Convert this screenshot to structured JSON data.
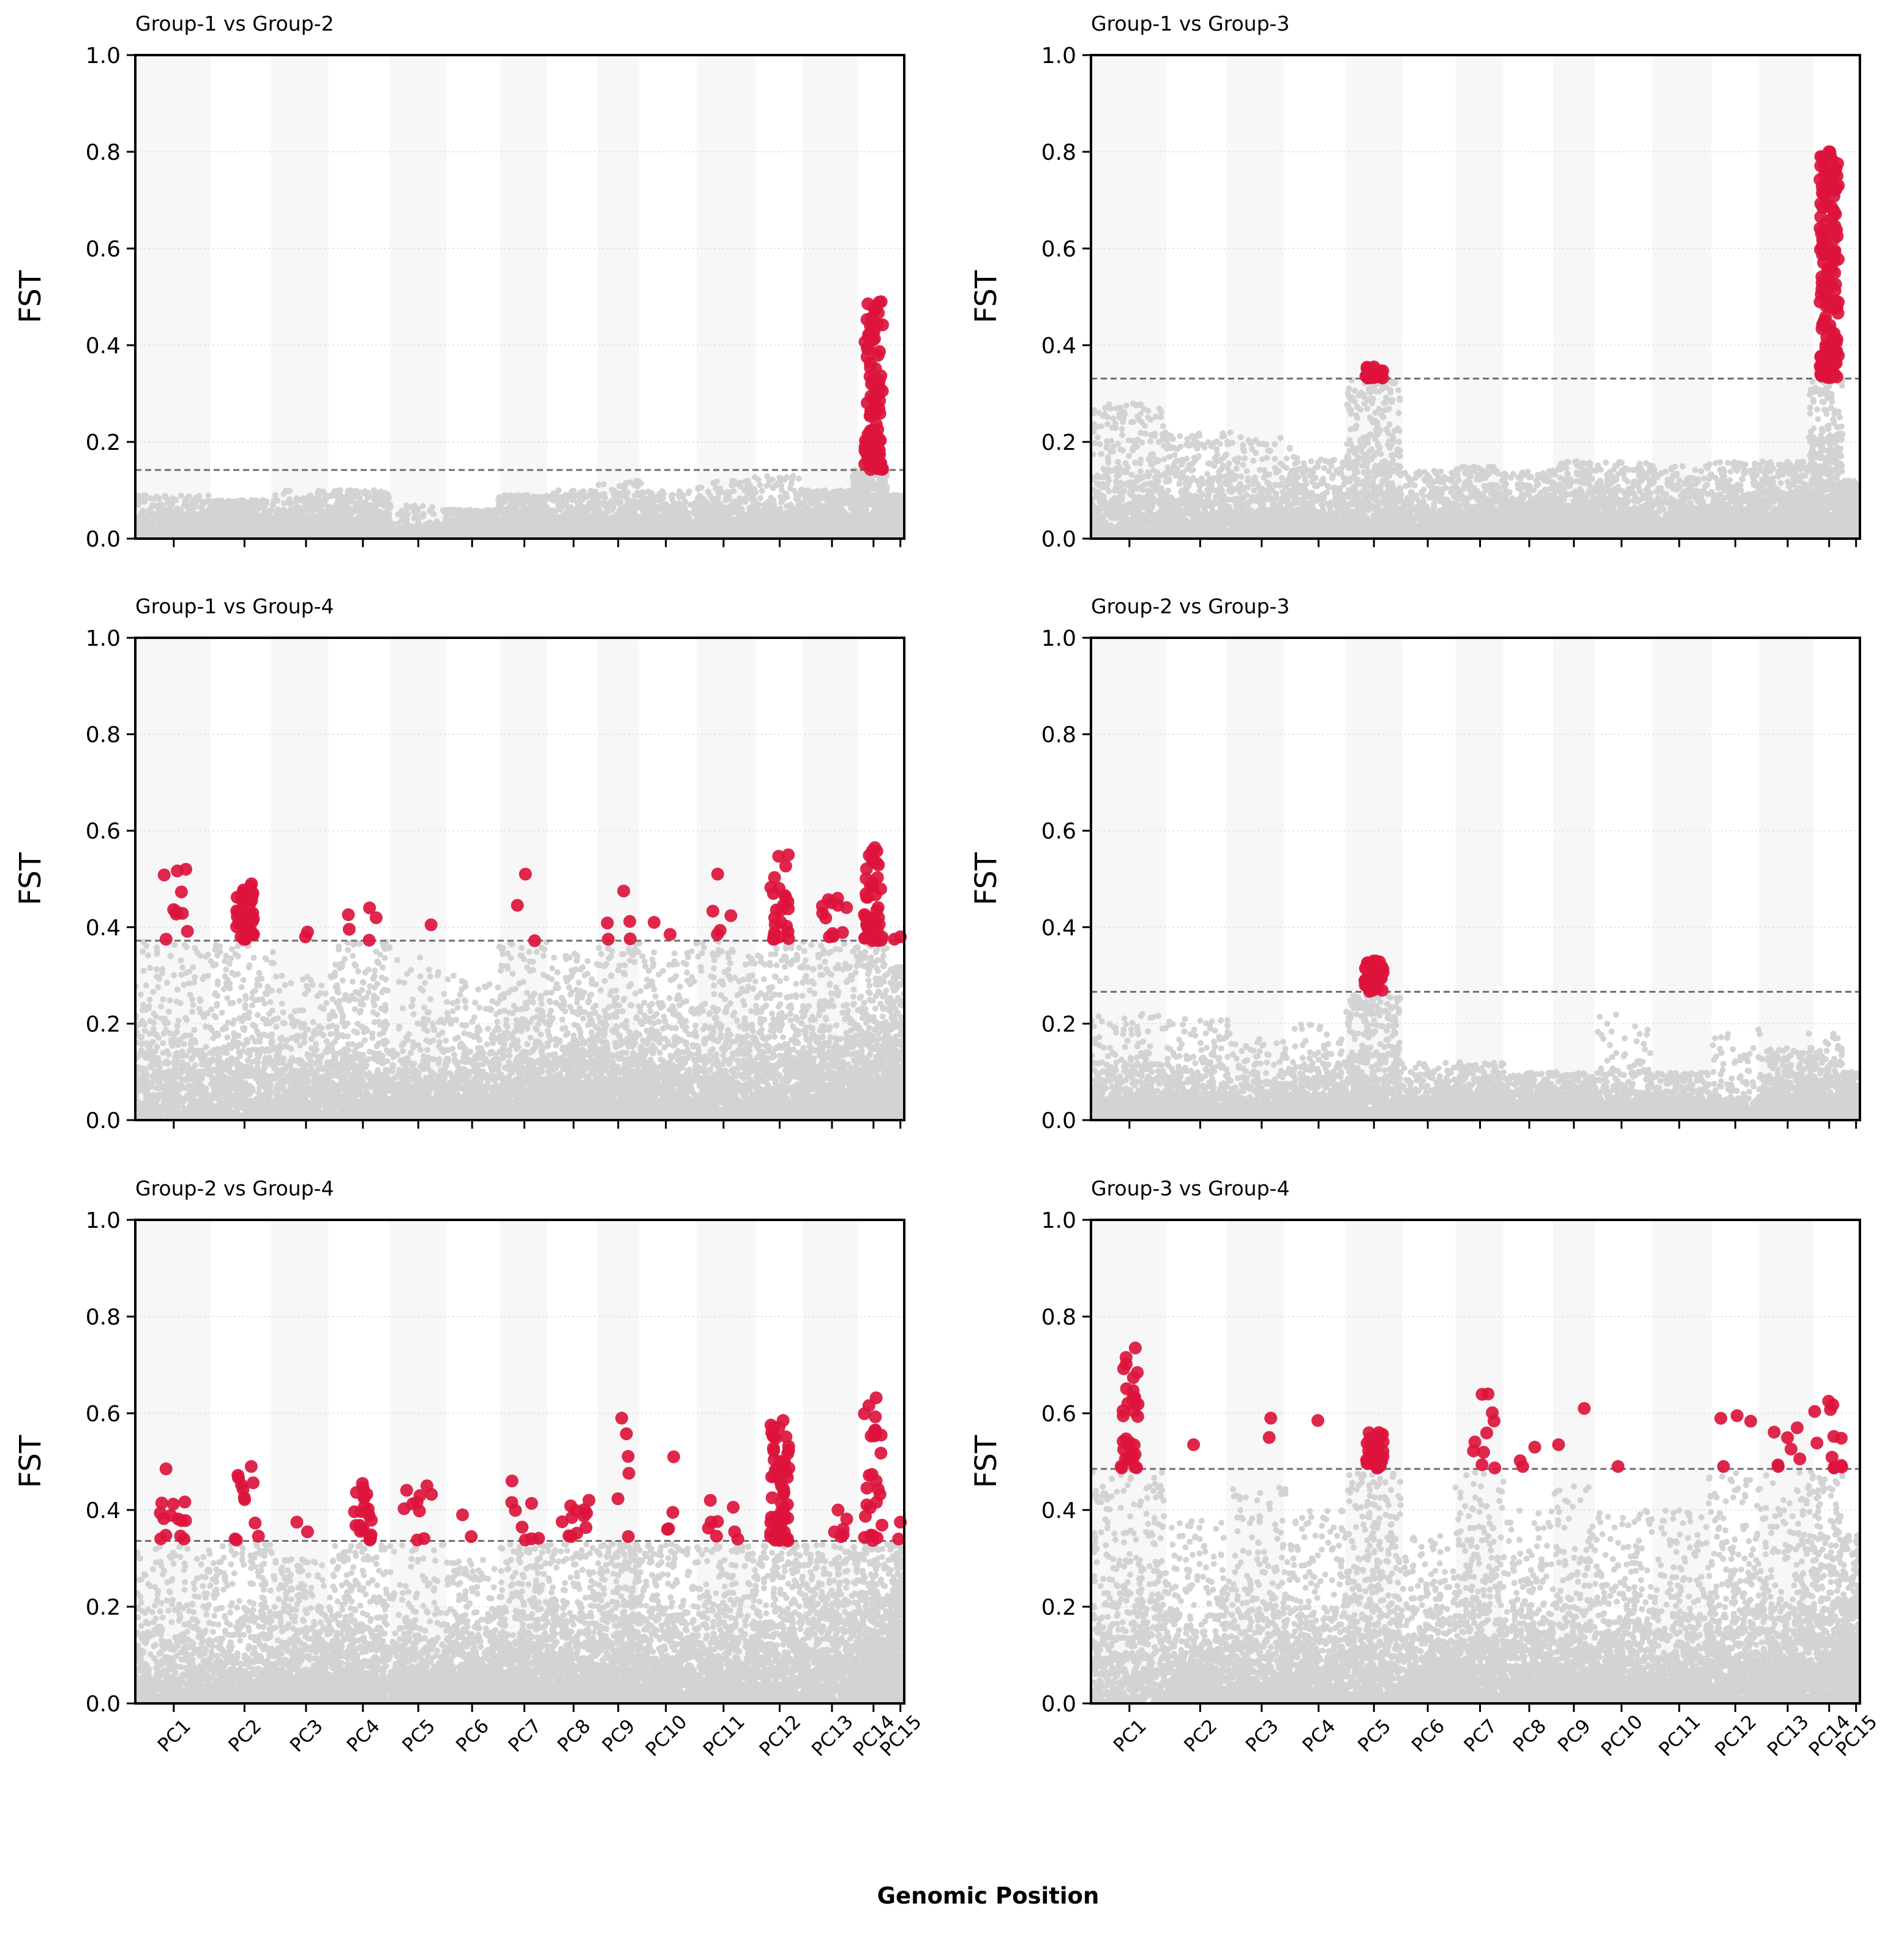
{
  "figure": {
    "xlabel": "Genomic Position",
    "colors": {
      "background_point": "#d3d3d3",
      "significant_point": "#dc143c",
      "threshold_line": "#6e6e6e",
      "band_shade": "#f7f7f7",
      "grid": "#dcdcdc"
    }
  },
  "chart_data": [
    {
      "type": "scatter",
      "title": "Group-1 vs Group-2",
      "xlabel": "",
      "ylabel": "FST",
      "ylim": [
        0,
        1
      ],
      "yticks": [
        "0.0",
        "0.2",
        "0.4",
        "0.6",
        "0.8",
        "1.0"
      ],
      "threshold": 0.142,
      "xtick_labels_shown": false,
      "background_levels": [
        0.03,
        0.04,
        0.03,
        0.04,
        0.01,
        0.03,
        0.04,
        0.03,
        0.03,
        0.03,
        0.03,
        0.03,
        0.04,
        0.06,
        0.03
      ],
      "background_peaks": [
        0.09,
        0.08,
        0.1,
        0.1,
        0.07,
        0.06,
        0.09,
        0.1,
        0.12,
        0.1,
        0.12,
        0.13,
        0.1,
        0.21,
        0.09
      ],
      "significant_points": [
        {
          "chr": "PC14",
          "min": 0.143,
          "max": 0.49,
          "count": 90
        }
      ]
    },
    {
      "type": "scatter",
      "title": "Group-1 vs Group-3",
      "xlabel": "",
      "ylabel": "FST",
      "ylim": [
        0,
        1
      ],
      "yticks": [
        "0.0",
        "0.2",
        "0.4",
        "0.6",
        "0.8",
        "1.0"
      ],
      "threshold": 0.331,
      "xtick_labels_shown": false,
      "background_levels": [
        0.09,
        0.07,
        0.05,
        0.05,
        0.12,
        0.04,
        0.05,
        0.05,
        0.05,
        0.05,
        0.04,
        0.05,
        0.06,
        0.12,
        0.04
      ],
      "background_peaks": [
        0.28,
        0.22,
        0.21,
        0.17,
        0.33,
        0.14,
        0.15,
        0.14,
        0.16,
        0.16,
        0.15,
        0.16,
        0.16,
        0.33,
        0.12
      ],
      "significant_points": [
        {
          "chr": "PC5",
          "min": 0.332,
          "max": 0.355,
          "count": 25
        },
        {
          "chr": "PC14",
          "min": 0.333,
          "max": 0.8,
          "count": 150
        }
      ]
    },
    {
      "type": "scatter",
      "title": "Group-1 vs Group-4",
      "xlabel": "",
      "ylabel": "FST",
      "ylim": [
        0,
        1
      ],
      "yticks": [
        "0.0",
        "0.2",
        "0.4",
        "0.6",
        "0.8",
        "1.0"
      ],
      "threshold": 0.372,
      "xtick_labels_shown": false,
      "background_levels": [
        0.1,
        0.12,
        0.08,
        0.1,
        0.06,
        0.07,
        0.1,
        0.1,
        0.1,
        0.1,
        0.1,
        0.12,
        0.11,
        0.12,
        0.1
      ],
      "background_peaks": [
        0.37,
        0.37,
        0.3,
        0.37,
        0.34,
        0.3,
        0.37,
        0.35,
        0.37,
        0.35,
        0.37,
        0.37,
        0.37,
        0.37,
        0.32
      ],
      "significant_points": [
        {
          "chr": "PC1",
          "min": 0.375,
          "max": 0.52,
          "count": 10
        },
        {
          "chr": "PC2",
          "min": 0.375,
          "max": 0.49,
          "count": 40
        },
        {
          "chr": "PC3",
          "min": 0.38,
          "max": 0.39,
          "count": 2
        },
        {
          "chr": "PC4",
          "min": 0.373,
          "max": 0.44,
          "count": 5
        },
        {
          "chr": "PC5",
          "min": 0.4,
          "max": 0.405,
          "count": 1
        },
        {
          "chr": "PC7",
          "min": 0.372,
          "max": 0.51,
          "count": 3
        },
        {
          "chr": "PC9",
          "min": 0.375,
          "max": 0.475,
          "count": 5
        },
        {
          "chr": "PC10",
          "min": 0.385,
          "max": 0.41,
          "count": 2
        },
        {
          "chr": "PC11",
          "min": 0.385,
          "max": 0.51,
          "count": 5
        },
        {
          "chr": "PC12",
          "min": 0.375,
          "max": 0.55,
          "count": 25
        },
        {
          "chr": "PC13",
          "min": 0.38,
          "max": 0.46,
          "count": 12
        },
        {
          "chr": "PC14",
          "min": 0.372,
          "max": 0.565,
          "count": 45
        },
        {
          "chr": "PC15",
          "min": 0.375,
          "max": 0.38,
          "count": 2
        }
      ]
    },
    {
      "type": "scatter",
      "title": "Group-2 vs Group-3",
      "xlabel": "",
      "ylabel": "FST",
      "ylim": [
        0,
        1
      ],
      "yticks": [
        "0.0",
        "0.2",
        "0.4",
        "0.6",
        "0.8",
        "1.0"
      ],
      "threshold": 0.266,
      "xtick_labels_shown": false,
      "background_levels": [
        0.05,
        0.05,
        0.03,
        0.04,
        0.1,
        0.03,
        0.04,
        0.03,
        0.03,
        0.03,
        0.03,
        0.02,
        0.04,
        0.04,
        0.03
      ],
      "background_peaks": [
        0.22,
        0.21,
        0.17,
        0.2,
        0.26,
        0.12,
        0.12,
        0.1,
        0.1,
        0.22,
        0.1,
        0.2,
        0.15,
        0.18,
        0.1
      ],
      "significant_points": [
        {
          "chr": "PC5",
          "min": 0.267,
          "max": 0.33,
          "count": 60
        }
      ]
    },
    {
      "type": "scatter",
      "title": "Group-2 vs Group-4",
      "xlabel": "",
      "ylabel": "FST",
      "ylim": [
        0,
        1
      ],
      "yticks": [
        "0.0",
        "0.2",
        "0.4",
        "0.6",
        "0.8",
        "1.0"
      ],
      "threshold": 0.336,
      "xtick_labels_shown": true,
      "xtick_labels": [
        "PC1",
        "PC2",
        "PC3",
        "PC4",
        "PC5",
        "PC6",
        "PC7",
        "PC8",
        "PC9",
        "PC10",
        "PC11",
        "PC12",
        "PC13",
        "PC14",
        "PC15"
      ],
      "background_levels": [
        0.1,
        0.1,
        0.1,
        0.11,
        0.07,
        0.09,
        0.11,
        0.1,
        0.12,
        0.1,
        0.1,
        0.12,
        0.12,
        0.12,
        0.1
      ],
      "background_peaks": [
        0.33,
        0.33,
        0.3,
        0.33,
        0.33,
        0.3,
        0.33,
        0.33,
        0.33,
        0.33,
        0.33,
        0.33,
        0.33,
        0.33,
        0.33
      ],
      "significant_points": [
        {
          "chr": "PC1",
          "min": 0.34,
          "max": 0.485,
          "count": 14
        },
        {
          "chr": "PC2",
          "min": 0.338,
          "max": 0.49,
          "count": 12
        },
        {
          "chr": "PC3",
          "min": 0.355,
          "max": 0.375,
          "count": 2
        },
        {
          "chr": "PC4",
          "min": 0.338,
          "max": 0.455,
          "count": 22
        },
        {
          "chr": "PC5",
          "min": 0.338,
          "max": 0.45,
          "count": 10
        },
        {
          "chr": "PC6",
          "min": 0.345,
          "max": 0.39,
          "count": 2
        },
        {
          "chr": "PC7",
          "min": 0.338,
          "max": 0.46,
          "count": 8
        },
        {
          "chr": "PC8",
          "min": 0.345,
          "max": 0.42,
          "count": 12
        },
        {
          "chr": "PC9",
          "min": 0.345,
          "max": 0.59,
          "count": 6
        },
        {
          "chr": "PC10",
          "min": 0.36,
          "max": 0.51,
          "count": 4
        },
        {
          "chr": "PC11",
          "min": 0.34,
          "max": 0.42,
          "count": 8
        },
        {
          "chr": "PC12",
          "min": 0.336,
          "max": 0.585,
          "count": 60
        },
        {
          "chr": "PC13",
          "min": 0.345,
          "max": 0.4,
          "count": 6
        },
        {
          "chr": "PC14",
          "min": 0.337,
          "max": 0.632,
          "count": 28
        },
        {
          "chr": "PC15",
          "min": 0.34,
          "max": 0.375,
          "count": 2
        }
      ]
    },
    {
      "type": "scatter",
      "title": "Group-3 vs Group-4",
      "xlabel": "",
      "ylabel": "FST",
      "ylim": [
        0,
        1
      ],
      "yticks": [
        "0.0",
        "0.2",
        "0.4",
        "0.6",
        "0.8",
        "1.0"
      ],
      "threshold": 0.485,
      "xtick_labels_shown": true,
      "xtick_labels": [
        "PC1",
        "PC2",
        "PC3",
        "PC4",
        "PC5",
        "PC6",
        "PC7",
        "PC8",
        "PC9",
        "PC10",
        "PC11",
        "PC12",
        "PC13",
        "PC14",
        "PC15"
      ],
      "background_levels": [
        0.16,
        0.1,
        0.11,
        0.1,
        0.18,
        0.09,
        0.15,
        0.1,
        0.1,
        0.1,
        0.09,
        0.13,
        0.12,
        0.15,
        0.1
      ],
      "background_peaks": [
        0.48,
        0.38,
        0.45,
        0.4,
        0.48,
        0.35,
        0.48,
        0.4,
        0.45,
        0.4,
        0.4,
        0.48,
        0.48,
        0.48,
        0.35
      ],
      "significant_points": [
        {
          "chr": "PC1",
          "min": 0.487,
          "max": 0.735,
          "count": 35
        },
        {
          "chr": "PC2",
          "min": 0.53,
          "max": 0.535,
          "count": 1
        },
        {
          "chr": "PC3",
          "min": 0.55,
          "max": 0.59,
          "count": 2
        },
        {
          "chr": "PC4",
          "min": 0.58,
          "max": 0.585,
          "count": 1
        },
        {
          "chr": "PC5",
          "min": 0.487,
          "max": 0.56,
          "count": 40
        },
        {
          "chr": "PC7",
          "min": 0.487,
          "max": 0.64,
          "count": 10
        },
        {
          "chr": "PC8",
          "min": 0.49,
          "max": 0.53,
          "count": 3
        },
        {
          "chr": "PC9",
          "min": 0.535,
          "max": 0.61,
          "count": 2
        },
        {
          "chr": "PC10",
          "min": 0.488,
          "max": 0.49,
          "count": 1
        },
        {
          "chr": "PC12",
          "min": 0.49,
          "max": 0.595,
          "count": 4
        },
        {
          "chr": "PC13",
          "min": 0.49,
          "max": 0.57,
          "count": 7
        },
        {
          "chr": "PC14",
          "min": 0.487,
          "max": 0.625,
          "count": 12
        }
      ]
    }
  ]
}
